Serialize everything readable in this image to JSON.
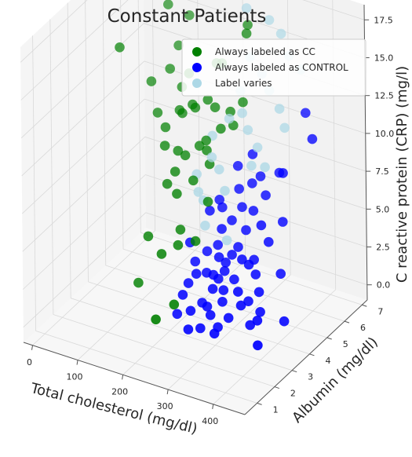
{
  "chart_data": {
    "type": "scatter",
    "projection": "3d",
    "title": "Constant Patients",
    "xlabel": "Total cholesterol (mg/dl)",
    "ylabel": "Albumin (mg/dl)",
    "zlabel": "C reactive protein (CRP) (mg/l)",
    "xlim": [
      -20,
      470
    ],
    "ylim": [
      0.3,
      7.3
    ],
    "zlim": [
      -1,
      18.5
    ],
    "x_ticks": [
      "0",
      "100",
      "200",
      "300",
      "400"
    ],
    "y_ticks": [
      "1",
      "2",
      "3",
      "4",
      "5",
      "6",
      "7"
    ],
    "z_ticks": [
      "0.0",
      "2.5",
      "5.0",
      "7.5",
      "10.0",
      "12.5",
      "15.0",
      "17.5"
    ],
    "grid": true,
    "legend_position": "top-right",
    "series": [
      {
        "name": "Always labeled as CC",
        "color": "#008000",
        "points": [
          [
            105,
            6.7,
            14.9
          ],
          [
            70,
            6.4,
            15.6
          ],
          [
            100,
            6.2,
            13.4
          ],
          [
            250,
            6.3,
            16.1
          ],
          [
            255,
            6.1,
            15.8
          ],
          [
            180,
            6.3,
            12.9
          ],
          [
            20,
            4.9,
            13.9
          ],
          [
            70,
            5.4,
            11.6
          ],
          [
            100,
            5.7,
            12.4
          ],
          [
            130,
            5.6,
            11.6
          ],
          [
            150,
            5.5,
            12.8
          ],
          [
            165,
            5.3,
            11.1
          ],
          [
            140,
            5.2,
            10.6
          ],
          [
            200,
            6.1,
            13.3
          ],
          [
            120,
            4.9,
            9.6
          ],
          [
            150,
            5.1,
            10.6
          ],
          [
            175,
            5.2,
            11.1
          ],
          [
            195,
            5.4,
            11.6
          ],
          [
            215,
            5.3,
            11.4
          ],
          [
            245,
            5.4,
            11.3
          ],
          [
            95,
            5.1,
            10.1
          ],
          [
            130,
            4.6,
            8.8
          ],
          [
            155,
            4.7,
            8.6
          ],
          [
            175,
            4.6,
            8.6
          ],
          [
            195,
            4.9,
            9.1
          ],
          [
            215,
            4.8,
            9.1
          ],
          [
            235,
            5.1,
            10.4
          ],
          [
            255,
            5.3,
            10.6
          ],
          [
            150,
            4.2,
            6.9
          ],
          [
            175,
            4.1,
            6.6
          ],
          [
            200,
            4.4,
            7.4
          ],
          [
            225,
            4.7,
            8.4
          ],
          [
            240,
            4.2,
            6.6
          ],
          [
            175,
            3.2,
            3.6
          ],
          [
            200,
            3.5,
            4.1
          ],
          [
            130,
            3.6,
            3.9
          ],
          [
            235,
            3.6,
            4.6
          ],
          [
            200,
            2.2,
            0.6
          ],
          [
            225,
            2.6,
            1.4
          ],
          [
            115,
            3.4,
            0.9
          ],
          [
            190,
            3.9,
            4.6
          ],
          [
            265,
            5.6,
            11.9
          ],
          [
            160,
            4.4,
            7.6
          ],
          [
            210,
            4.9,
            9.6
          ]
        ]
      },
      {
        "name": "Always labeled as CONTROL",
        "color": "#0000ff",
        "points": [
          [
            430,
            3.6,
            1.2
          ],
          [
            390,
            4.6,
            6.3
          ],
          [
            400,
            4.2,
            3.4
          ],
          [
            375,
            3.6,
            2.6
          ],
          [
            390,
            3.1,
            1.4
          ],
          [
            410,
            2.6,
            0.5
          ],
          [
            380,
            4.9,
            9.1
          ],
          [
            400,
            5.7,
            12.4
          ],
          [
            430,
            5.3,
            11.4
          ],
          [
            360,
            5.2,
            8.6
          ],
          [
            345,
            4.8,
            7.4
          ],
          [
            350,
            4.4,
            5.9
          ],
          [
            320,
            4.3,
            5.4
          ],
          [
            330,
            4.9,
            8.4
          ],
          [
            300,
            4.0,
            3.9
          ],
          [
            320,
            3.6,
            2.9
          ],
          [
            290,
            3.9,
            3.4
          ],
          [
            305,
            3.3,
            1.6
          ],
          [
            340,
            3.3,
            2.6
          ],
          [
            345,
            3.8,
            3.9
          ],
          [
            360,
            3.8,
            3.4
          ],
          [
            370,
            4.3,
            5.1
          ],
          [
            280,
            3.4,
            2.1
          ],
          [
            260,
            3.3,
            1.1
          ],
          [
            270,
            3.7,
            2.6
          ],
          [
            250,
            2.9,
            0.9
          ],
          [
            240,
            3.5,
            2.6
          ],
          [
            265,
            4.1,
            4.1
          ],
          [
            285,
            4.4,
            5.6
          ],
          [
            300,
            4.6,
            6.4
          ],
          [
            245,
            4.0,
            3.6
          ],
          [
            230,
            3.7,
            3.1
          ],
          [
            230,
            3.3,
            2.1
          ],
          [
            215,
            3.8,
            4.1
          ],
          [
            220,
            2.9,
            0.4
          ],
          [
            290,
            3.0,
            0.9
          ],
          [
            310,
            2.9,
            0.4
          ],
          [
            330,
            3.0,
            1.1
          ],
          [
            310,
            2.7,
            0.2
          ],
          [
            275,
            2.8,
            0.1
          ],
          [
            275,
            3.9,
            3.6
          ],
          [
            310,
            4.1,
            4.4
          ],
          [
            290,
            4.7,
            7.4
          ],
          [
            315,
            4.8,
            7.9
          ],
          [
            250,
            4.6,
            6.4
          ],
          [
            260,
            2.5,
            0.2
          ],
          [
            330,
            3.8,
            4.1
          ],
          [
            350,
            3.2,
            1.9
          ],
          [
            240,
            4.3,
            5.9
          ],
          [
            270,
            4.2,
            5.1
          ],
          [
            295,
            3.7,
            3.1
          ],
          [
            325,
            4.6,
            6.4
          ],
          [
            345,
            4.1,
            3.9
          ],
          [
            355,
            3.5,
            1.9
          ],
          [
            370,
            3.2,
            0.8
          ],
          [
            385,
            3.4,
            1.6
          ],
          [
            225,
            3.1,
            1.5
          ],
          [
            255,
            3.7,
            2.6
          ],
          [
            260,
            4.5,
            6.1
          ],
          [
            280,
            4.9,
            8.6
          ],
          [
            305,
            5.1,
            9.4
          ],
          [
            300,
            3.5,
            2.1
          ],
          [
            285,
            3.6,
            2.6
          ],
          [
            275,
            3.2,
            1.1
          ]
        ]
      },
      {
        "name": "Label varies",
        "color": "#add8e6",
        "points": [
          [
            240,
            6.5,
            16.9
          ],
          [
            290,
            6.5,
            16.6
          ],
          [
            320,
            6.4,
            16.1
          ],
          [
            345,
            6.2,
            15.1
          ],
          [
            375,
            6.1,
            14.6
          ],
          [
            270,
            5.9,
            14.6
          ],
          [
            300,
            5.8,
            13.9
          ],
          [
            320,
            5.7,
            13.1
          ],
          [
            250,
            5.2,
            11.1
          ],
          [
            275,
            5.3,
            11.6
          ],
          [
            295,
            5.1,
            10.9
          ],
          [
            320,
            5.0,
            10.1
          ],
          [
            350,
            5.5,
            12.4
          ],
          [
            230,
            4.7,
            8.9
          ],
          [
            250,
            4.6,
            8.4
          ],
          [
            270,
            4.4,
            7.4
          ],
          [
            230,
            4.2,
            6.6
          ],
          [
            245,
            3.9,
            5.4
          ],
          [
            200,
            4.6,
            7.6
          ],
          [
            215,
            4.3,
            6.9
          ],
          [
            340,
            4.9,
            9.1
          ],
          [
            285,
            4.1,
            4.6
          ],
          [
            310,
            4.9,
            8.9
          ],
          [
            260,
            5.6,
            12.6
          ],
          [
            220,
            5.0,
            9.9
          ],
          [
            365,
            5.4,
            11.4
          ]
        ]
      }
    ]
  }
}
